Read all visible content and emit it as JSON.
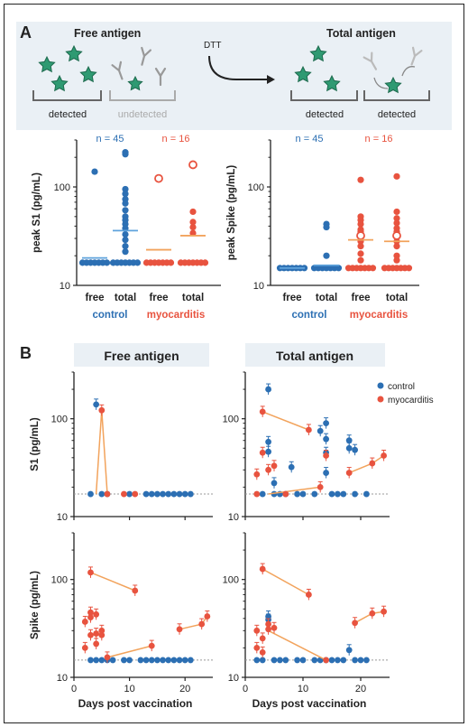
{
  "colors": {
    "control": "#2c6fb3",
    "myocarditis": "#e8533f",
    "header_bg": "#eaf0f5",
    "grey_text": "#aaaaaa"
  },
  "panel_a": {
    "label": "A",
    "schematic": {
      "free_title": "Free antigen",
      "total_title": "Total antigen",
      "dtt": "DTT",
      "labels": [
        "detected",
        "undetected",
        "detected",
        "detected"
      ]
    },
    "left_chart": {
      "ylabel": "peak S1 (pg/mL)",
      "yticks": [
        "10",
        "100"
      ],
      "n_labels": [
        "n = 45",
        "n = 16"
      ],
      "xticks": [
        "free",
        "total",
        "free",
        "total"
      ],
      "groups": [
        "control",
        "myocarditis"
      ]
    },
    "right_chart": {
      "ylabel": "peak Spike (pg/mL)",
      "yticks": [
        "10",
        "100"
      ],
      "n_labels": [
        "n = 45",
        "n = 16"
      ],
      "xticks": [
        "free",
        "total",
        "free",
        "total"
      ],
      "groups": [
        "control",
        "myocarditis"
      ]
    }
  },
  "panel_b": {
    "label": "B",
    "col_titles": [
      "Free antigen",
      "Total antigen"
    ],
    "legend": [
      "control",
      "myocarditis"
    ],
    "row_ylabels": [
      "S1 (pg/mL)",
      "Spike (pg/mL)"
    ],
    "yticks": [
      "10",
      "100"
    ],
    "xticks": [
      "0",
      "10",
      "20"
    ],
    "xlabel": "Days post vaccination"
  },
  "chart_data": [
    {
      "type": "scatter",
      "panel": "A-left",
      "title": "",
      "ylabel": "peak S1 (pg/mL)",
      "yscale": "log",
      "ylim": [
        10,
        300
      ],
      "categories": [
        "free",
        "total",
        "free",
        "total"
      ],
      "series": [
        {
          "name": "control",
          "free_points": [
            143,
            17
          ],
          "free_mean": 19,
          "total_points": [
            225,
            215,
            95,
            85,
            75,
            68,
            58,
            50,
            46,
            42,
            38,
            33,
            29,
            25,
            22,
            17
          ],
          "total_mean": 36
        },
        {
          "name": "myocarditis",
          "free_points": [
            17
          ],
          "free_hollow": [
            122
          ],
          "free_mean": 23,
          "total_points": [
            56,
            44,
            39,
            34,
            17
          ],
          "total_hollow": [
            168
          ],
          "total_mean": 32
        }
      ]
    },
    {
      "type": "scatter",
      "panel": "A-right",
      "title": "",
      "ylabel": "peak Spike (pg/mL)",
      "yscale": "log",
      "ylim": [
        10,
        300
      ],
      "categories": [
        "free",
        "total",
        "free",
        "total"
      ],
      "series": [
        {
          "name": "control",
          "free_points": [
            15
          ],
          "free_mean": 15,
          "total_points": [
            42,
            39,
            20,
            15
          ],
          "total_mean": 16
        },
        {
          "name": "myocarditis",
          "free_points": [
            118,
            50,
            46,
            42,
            37,
            35,
            33,
            31,
            28,
            25,
            21,
            18,
            15
          ],
          "free_hollow": [
            32
          ],
          "free_mean": 29,
          "total_points": [
            128,
            56,
            48,
            43,
            38,
            35,
            32,
            28,
            25,
            20,
            18,
            15
          ],
          "total_hollow": [
            32
          ],
          "total_mean": 28
        }
      ]
    },
    {
      "type": "line",
      "panel": "B-S1-free",
      "ylabel": "S1 (pg/mL)",
      "xlabel": "Days post vaccination",
      "xlim": [
        0,
        25
      ],
      "ylim": [
        10,
        300
      ],
      "yscale": "log",
      "series": [
        {
          "name": "control",
          "points": [
            [
              3,
              17
            ],
            [
              4,
              140
            ],
            [
              5,
              17
            ],
            [
              6,
              17
            ],
            [
              10,
              17
            ],
            [
              13,
              17
            ],
            [
              14,
              17
            ],
            [
              15,
              17
            ],
            [
              16,
              17
            ],
            [
              17,
              17
            ],
            [
              18,
              17
            ],
            [
              19,
              17
            ],
            [
              20,
              17
            ],
            [
              21,
              17
            ]
          ]
        },
        {
          "name": "myocarditis",
          "points": [
            [
              5,
              122
            ],
            [
              6,
              17
            ],
            [
              9,
              17
            ],
            [
              11,
              17
            ]
          ],
          "lines": [
            [
              [
                4,
                17
              ],
              [
                5,
                122
              ],
              [
                6,
                17
              ]
            ]
          ]
        }
      ]
    },
    {
      "type": "line",
      "panel": "B-S1-total",
      "ylabel": "S1 (pg/mL)",
      "xlabel": "Days post vaccination",
      "xlim": [
        0,
        25
      ],
      "ylim": [
        10,
        300
      ],
      "yscale": "log",
      "series": [
        {
          "name": "control",
          "points": [
            [
              4,
              200
            ],
            [
              4,
              58
            ],
            [
              4,
              46
            ],
            [
              5,
              22
            ],
            [
              5,
              17
            ],
            [
              8,
              32
            ],
            [
              13,
              75
            ],
            [
              14,
              90
            ],
            [
              14,
              62
            ],
            [
              14,
              45
            ],
            [
              14,
              28
            ],
            [
              18,
              60
            ],
            [
              18,
              50
            ],
            [
              19,
              48
            ],
            [
              3,
              17
            ],
            [
              6,
              17
            ],
            [
              7,
              17
            ],
            [
              9,
              17
            ],
            [
              10,
              17
            ],
            [
              12,
              17
            ],
            [
              15,
              17
            ],
            [
              16,
              17
            ],
            [
              17,
              17
            ],
            [
              19,
              17
            ],
            [
              21,
              17
            ]
          ]
        },
        {
          "name": "myocarditis",
          "points": [
            [
              3,
              118
            ],
            [
              3,
              45
            ],
            [
              2,
              27
            ],
            [
              4,
              30
            ],
            [
              5,
              33
            ],
            [
              11,
              77
            ],
            [
              13,
              20
            ],
            [
              14,
              42
            ],
            [
              18,
              28
            ],
            [
              22,
              35
            ],
            [
              24,
              42
            ],
            [
              2,
              17
            ],
            [
              7,
              17
            ]
          ],
          "lines": [
            [
              [
                3,
                118
              ],
              [
                11,
                77
              ]
            ],
            [
              [
                4,
                17
              ],
              [
                13,
                20
              ]
            ],
            [
              [
                18,
                28
              ],
              [
                22,
                35
              ],
              [
                24,
                42
              ]
            ]
          ]
        }
      ]
    },
    {
      "type": "line",
      "panel": "B-Spike-free",
      "ylabel": "Spike (pg/mL)",
      "xlabel": "Days post vaccination",
      "xlim": [
        0,
        25
      ],
      "ylim": [
        10,
        300
      ],
      "yscale": "log",
      "series": [
        {
          "name": "control",
          "points": [
            [
              3,
              15
            ],
            [
              4,
              15
            ],
            [
              5,
              15
            ],
            [
              6,
              15
            ],
            [
              7,
              15
            ],
            [
              9,
              15
            ],
            [
              10,
              15
            ],
            [
              12,
              15
            ],
            [
              13,
              15
            ],
            [
              14,
              15
            ],
            [
              15,
              15
            ],
            [
              16,
              15
            ],
            [
              17,
              15
            ],
            [
              18,
              15
            ],
            [
              19,
              15
            ],
            [
              20,
              15
            ],
            [
              21,
              15
            ]
          ]
        },
        {
          "name": "myocarditis",
          "points": [
            [
              3,
              118
            ],
            [
              11,
              77
            ],
            [
              2,
              37
            ],
            [
              3,
              46
            ],
            [
              3,
              41
            ],
            [
              4,
              44
            ],
            [
              4,
              28
            ],
            [
              5,
              30
            ],
            [
              5,
              27
            ],
            [
              3,
              27
            ],
            [
              4,
              22
            ],
            [
              2,
              20
            ],
            [
              6,
              16
            ],
            [
              14,
              21
            ],
            [
              19,
              31
            ],
            [
              23,
              35
            ],
            [
              24,
              42
            ]
          ],
          "lines": [
            [
              [
                3,
                118
              ],
              [
                11,
                77
              ]
            ],
            [
              [
                6,
                16
              ],
              [
                14,
                21
              ]
            ],
            [
              [
                19,
                31
              ],
              [
                23,
                35
              ],
              [
                24,
                42
              ]
            ]
          ]
        }
      ]
    },
    {
      "type": "line",
      "panel": "B-Spike-total",
      "ylabel": "Spike (pg/mL)",
      "xlabel": "Days post vaccination",
      "xlim": [
        0,
        25
      ],
      "ylim": [
        10,
        300
      ],
      "yscale": "log",
      "series": [
        {
          "name": "control",
          "points": [
            [
              4,
              42
            ],
            [
              4,
              39
            ],
            [
              18,
              19
            ],
            [
              2,
              15
            ],
            [
              3,
              15
            ],
            [
              5,
              15
            ],
            [
              6,
              15
            ],
            [
              7,
              15
            ],
            [
              9,
              15
            ],
            [
              10,
              15
            ],
            [
              12,
              15
            ],
            [
              13,
              15
            ],
            [
              14,
              15
            ],
            [
              15,
              15
            ],
            [
              16,
              15
            ],
            [
              17,
              15
            ],
            [
              19,
              15
            ],
            [
              20,
              15
            ],
            [
              21,
              15
            ]
          ]
        },
        {
          "name": "myocarditis",
          "points": [
            [
              3,
              128
            ],
            [
              11,
              70
            ],
            [
              2,
              30
            ],
            [
              3,
              25
            ],
            [
              4,
              31
            ],
            [
              5,
              32
            ],
            [
              4,
              35
            ],
            [
              2,
              20
            ],
            [
              3,
              18
            ],
            [
              14,
              15
            ],
            [
              19,
              36
            ],
            [
              22,
              45
            ],
            [
              24,
              47
            ]
          ],
          "lines": [
            [
              [
                3,
                128
              ],
              [
                11,
                70
              ]
            ],
            [
              [
                4,
                30
              ],
              [
                14,
                15
              ]
            ],
            [
              [
                19,
                36
              ],
              [
                22,
                45
              ],
              [
                24,
                47
              ]
            ]
          ]
        }
      ]
    }
  ]
}
